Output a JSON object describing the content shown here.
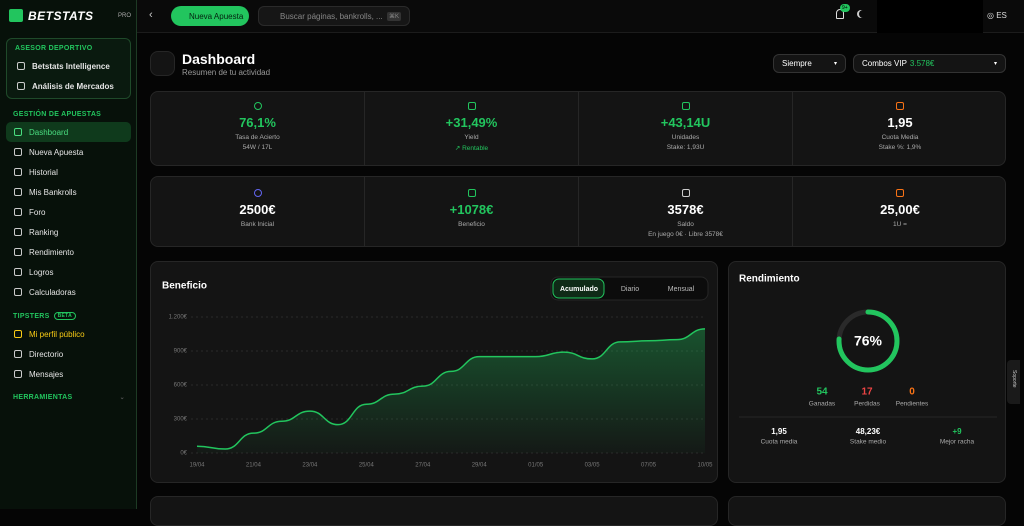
{
  "sidebar": {
    "logo": "BETSTATS",
    "logo_tag": "PRO",
    "sections": [
      {
        "title": "ASESOR DEPORTIVO",
        "items": [
          "Betstats Intelligence",
          "Análisis de Mercados"
        ]
      },
      {
        "title": "GESTIÓN DE APUESTAS",
        "items": [
          "Dashboard",
          "Nueva Apuesta",
          "Historial",
          "Mis Bankrolls",
          "Foro",
          "Ranking",
          "Rendimiento",
          "Logros",
          "Calculadoras"
        ]
      },
      {
        "title": "TIPSTERS",
        "badge": "BETA",
        "items": [
          "Mi perfil público",
          "Directorio",
          "Mensajes"
        ]
      },
      {
        "title": "HERRAMIENTAS",
        "items": []
      }
    ]
  },
  "topbar": {
    "new_bet": "Nueva Apuesta",
    "search": "Buscar páginas, bankrolls, ...",
    "shortcut": "⌘K",
    "notifications": "9+",
    "language": "ES",
    "support": "Soporte"
  },
  "header": {
    "title": "Dashboard",
    "subtitle": "Resumen de tu actividad",
    "period": "Siempre",
    "bankroll": "Combos VIP",
    "bankroll_value": "3.578€"
  },
  "stats": [
    {
      "value": "76,1%",
      "label": "Tasa de Acierto",
      "sub": "54W / 17L",
      "color": "#22c55e"
    },
    {
      "value": "+31,49%",
      "label": "Yield",
      "sub": "↗ Rentable",
      "color": "#22c55e"
    },
    {
      "value": "+43,14U",
      "label": "Unidades",
      "sub": "Stake: 1,93U",
      "color": "#22c55e"
    },
    {
      "value": "1,95",
      "label": "Cuota Media",
      "sub": "Stake %: 1,9%",
      "color": "#ffffff"
    },
    {
      "value": "2500€",
      "label": "Bank Inicial",
      "color": "#ffffff"
    },
    {
      "value": "+1078€",
      "label": "Beneficio",
      "color": "#22c55e"
    },
    {
      "value": "3578€",
      "label": "Saldo",
      "sub": "En juego 0€ · Libre 3578€",
      "color": "#ffffff"
    },
    {
      "value": "25,00€",
      "label": "1U =",
      "color": "#ffffff"
    }
  ],
  "chart_data": {
    "type": "area",
    "title": "Beneficio",
    "tabs": [
      "Acumulado",
      "Diario",
      "Mensual"
    ],
    "categories": [
      "19/04",
      null,
      "21/04",
      null,
      "23/04",
      null,
      "25/04",
      null,
      "27/04",
      null,
      "29/04",
      null,
      "01/05",
      null,
      "03/05",
      null,
      "07/05",
      null,
      "10/05"
    ],
    "series": [
      {
        "name": "Beneficio",
        "color": "#22c55e",
        "values": [
          60,
          35,
          175,
          280,
          370,
          250,
          430,
          520,
          590,
          720,
          850,
          850,
          850,
          890,
          830,
          980,
          990,
          1000,
          1095
        ]
      }
    ],
    "ylim": [
      0,
      1200
    ],
    "yticks": [
      {
        "value": 0,
        "label": "0€"
      },
      {
        "value": 300,
        "label": "300€"
      },
      {
        "value": 600,
        "label": "600€"
      },
      {
        "value": 900,
        "label": "900€"
      },
      {
        "value": 1200,
        "label": "1.200€"
      }
    ],
    "grid": true
  },
  "performance": {
    "title": "Rendimiento",
    "gauge_value": 76,
    "gauge_label": "76%",
    "counts": [
      {
        "value": "54",
        "label": "Ganadas",
        "color": "#22c55e"
      },
      {
        "value": "17",
        "label": "Perdidas",
        "color": "#ef4444"
      },
      {
        "value": "0",
        "label": "Pendientes",
        "color": "#f97316"
      }
    ],
    "details": [
      {
        "value": "1,95",
        "label": "Cuota media"
      },
      {
        "value": "48,23€",
        "label": "Stake medio"
      },
      {
        "value": "+9",
        "label": "Mejor racha"
      }
    ]
  }
}
